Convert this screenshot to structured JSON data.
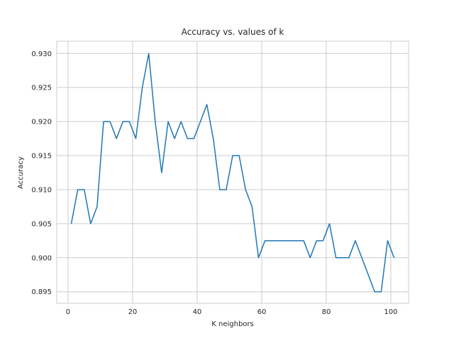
{
  "chart_data": {
    "type": "line",
    "title": "Accuracy vs. values of k",
    "xlabel": "K neighbors",
    "ylabel": "Accuracy",
    "xlim": [
      -3.5,
      105.5
    ],
    "ylim": [
      0.8933,
      0.9318
    ],
    "xticks": [
      0,
      20,
      40,
      60,
      80,
      100
    ],
    "xtick_labels": [
      "0",
      "20",
      "40",
      "60",
      "80",
      "100"
    ],
    "yticks": [
      0.895,
      0.9,
      0.905,
      0.91,
      0.915,
      0.92,
      0.925,
      0.93
    ],
    "ytick_labels": [
      "0.895",
      "0.900",
      "0.905",
      "0.910",
      "0.915",
      "0.920",
      "0.925",
      "0.930"
    ],
    "grid": true,
    "line_color": "#1f77b4",
    "series": [
      {
        "x": [
          1,
          3,
          5,
          7,
          9,
          11,
          13,
          15,
          17,
          19,
          21,
          23,
          25,
          27,
          29,
          31,
          33,
          35,
          37,
          39,
          41,
          43,
          45,
          47,
          49,
          51,
          53,
          55,
          57,
          59,
          61,
          63,
          65,
          67,
          69,
          71,
          73,
          75,
          77,
          79,
          81,
          83,
          85,
          87,
          89,
          91,
          93,
          95,
          97,
          99,
          101
        ],
        "values": [
          0.905,
          0.91,
          0.91,
          0.905,
          0.9075,
          0.92,
          0.92,
          0.9175,
          0.92,
          0.92,
          0.9175,
          0.925,
          0.93,
          0.92,
          0.9125,
          0.92,
          0.9175,
          0.92,
          0.9175,
          0.9175,
          0.92,
          0.9225,
          0.9175,
          0.91,
          0.91,
          0.915,
          0.915,
          0.91,
          0.9075,
          0.9,
          0.9025,
          0.9025,
          0.9025,
          0.9025,
          0.9025,
          0.9025,
          0.9025,
          0.9,
          0.9025,
          0.9025,
          0.905,
          0.9,
          0.9,
          0.9,
          0.9025,
          0.9,
          0.8975,
          0.895,
          0.895,
          0.9025,
          0.9
        ]
      }
    ]
  }
}
